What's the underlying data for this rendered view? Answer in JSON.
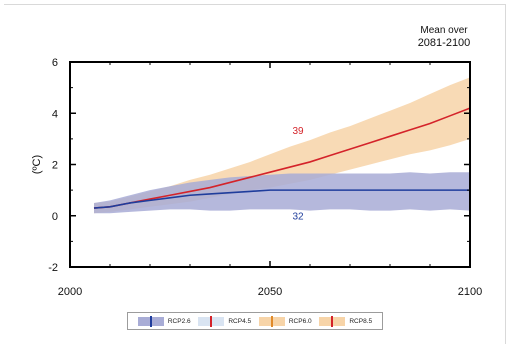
{
  "chart_data": {
    "type": "line",
    "title": "",
    "xlabel": "",
    "ylabel": "(ºC)",
    "xlim": [
      2000,
      2100
    ],
    "ylim": [
      -2,
      6
    ],
    "xticks": [
      2000,
      2050,
      2100
    ],
    "yticks": [
      -2,
      0,
      2,
      4,
      6
    ],
    "yminor": [
      -1,
      1,
      3,
      5
    ],
    "xminor": [
      2010,
      2020,
      2030,
      2040,
      2060,
      2070,
      2080,
      2090
    ],
    "grid": false,
    "mean_over_label": [
      "Mean over",
      "2081-2100"
    ],
    "series": [
      {
        "name": "RCP8.5",
        "color": "#d4232a",
        "band_color": "#f7d4a8",
        "x": [
          2006,
          2010,
          2015,
          2020,
          2025,
          2030,
          2035,
          2040,
          2045,
          2050,
          2055,
          2060,
          2065,
          2070,
          2075,
          2080,
          2085,
          2090,
          2095,
          2100
        ],
        "values": [
          0.3,
          0.35,
          0.5,
          0.65,
          0.8,
          0.95,
          1.1,
          1.3,
          1.5,
          1.7,
          1.9,
          2.1,
          2.35,
          2.6,
          2.85,
          3.1,
          3.35,
          3.6,
          3.9,
          4.2
        ],
        "lower": [
          0.1,
          0.15,
          0.25,
          0.35,
          0.45,
          0.55,
          0.7,
          0.85,
          1.0,
          1.1,
          1.25,
          1.4,
          1.6,
          1.8,
          2.0,
          2.2,
          2.4,
          2.55,
          2.75,
          3.0
        ],
        "upper": [
          0.5,
          0.55,
          0.75,
          0.95,
          1.15,
          1.4,
          1.6,
          1.85,
          2.1,
          2.4,
          2.7,
          2.95,
          3.25,
          3.5,
          3.8,
          4.1,
          4.4,
          4.75,
          5.1,
          5.4
        ],
        "label": "39",
        "label_at": [
          2057,
          3.2
        ]
      },
      {
        "name": "RCP2.6",
        "color": "#1f3d9c",
        "band_color": "#a8acd6",
        "x": [
          2006,
          2010,
          2015,
          2020,
          2025,
          2030,
          2035,
          2040,
          2045,
          2050,
          2055,
          2060,
          2065,
          2070,
          2075,
          2080,
          2085,
          2090,
          2095,
          2100
        ],
        "values": [
          0.3,
          0.35,
          0.5,
          0.6,
          0.7,
          0.8,
          0.85,
          0.9,
          0.95,
          1.0,
          1.0,
          1.0,
          1.0,
          1.0,
          1.0,
          1.0,
          1.0,
          1.0,
          1.0,
          1.0
        ],
        "lower": [
          0.1,
          0.1,
          0.15,
          0.2,
          0.25,
          0.25,
          0.2,
          0.2,
          0.25,
          0.25,
          0.25,
          0.2,
          0.25,
          0.25,
          0.2,
          0.2,
          0.25,
          0.2,
          0.25,
          0.2
        ],
        "upper": [
          0.5,
          0.6,
          0.8,
          1.0,
          1.15,
          1.3,
          1.4,
          1.5,
          1.55,
          1.6,
          1.65,
          1.65,
          1.65,
          1.65,
          1.65,
          1.65,
          1.7,
          1.65,
          1.7,
          1.7
        ],
        "label": "32",
        "label_at": [
          2057,
          -0.15
        ]
      }
    ],
    "legend": {
      "placement": "bottom",
      "items": [
        {
          "label": "RCP2.6",
          "fill": "#a8acd6",
          "tick": "#1f3d9c"
        },
        {
          "label": "RCP4.5",
          "fill": "#d9e4f2",
          "tick": "#d4232a"
        },
        {
          "label": "RCP6.0",
          "fill": "#f7d4a8",
          "tick": "#e08a2a"
        },
        {
          "label": "RCP8.5",
          "fill": "#f7d4a8",
          "tick": "#d4232a"
        }
      ]
    }
  }
}
